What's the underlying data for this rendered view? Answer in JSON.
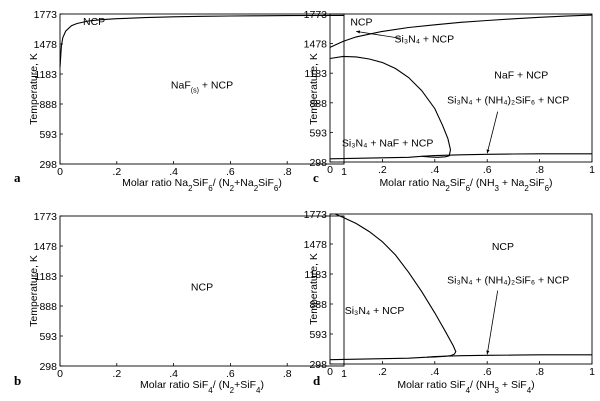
{
  "chart_data": [
    {
      "panel": "a",
      "type": "line",
      "ylabel": "Temperature, K",
      "xlabel": {
        "pre": "Molar ratio Na",
        "s1": "2",
        "mid1": "SiF",
        "s2": "6",
        "mid2": "/ (N",
        "s3": "2",
        "mid3": "+Na",
        "s4": "2",
        "mid4": "SiF",
        "s5": "6",
        "post": ")"
      },
      "xlim": [
        0,
        1
      ],
      "ylim": [
        298,
        1773
      ],
      "xticks": [
        0,
        0.2,
        0.4,
        0.6,
        0.8,
        1
      ],
      "xtick_labels": [
        "0",
        ".2",
        ".4",
        ".6",
        ".8",
        "1"
      ],
      "yticks": [
        298,
        593,
        888,
        1183,
        1478,
        1773
      ],
      "ytick_labels": [
        "298",
        "593",
        "888",
        "1183",
        "1478",
        "1773"
      ],
      "series": [
        {
          "x": [
            0,
            0.005,
            0.01,
            0.02,
            0.04,
            0.06,
            0.1,
            0.15,
            0.2,
            0.3,
            0.4,
            0.5,
            0.6,
            0.7,
            0.8,
            0.9,
            1.0
          ],
          "y": [
            1250,
            1460,
            1540,
            1605,
            1658,
            1680,
            1704,
            1718,
            1727,
            1738,
            1745,
            1750,
            1753,
            1755,
            1757,
            1758,
            1759
          ]
        }
      ],
      "annotations": [
        {
          "text": "NCP",
          "x": 0.12,
          "y": 1665
        },
        {
          "text": "NaF",
          "sub": "(s)",
          "tail": " + NCP",
          "x": 0.5,
          "y": 1040
        }
      ]
    },
    {
      "panel": "c",
      "type": "line",
      "ylabel": "Temperature, K",
      "xlabel": {
        "pre": "Molar ratio Na",
        "s1": "2",
        "mid1": "SiF",
        "s2": "6",
        "post": "/ (NH",
        "s3": "3",
        "post2": " + Na",
        "s4": "2",
        "post3": "SiF",
        "s5": "6",
        "post4": ")"
      },
      "xlim": [
        0,
        1
      ],
      "ylim": [
        298,
        1773
      ],
      "xticks": [
        0,
        0.2,
        0.4,
        0.6,
        0.8,
        1
      ],
      "xtick_labels": [
        "0",
        ".2",
        ".4",
        ".6",
        ".8",
        "1"
      ],
      "yticks": [
        298,
        593,
        888,
        1183,
        1478,
        1773
      ],
      "ytick_labels": [
        "298",
        "593",
        "888",
        "1183",
        "1478",
        "1773"
      ],
      "series": [
        {
          "x": [
            0,
            0.05,
            0.1,
            0.2,
            0.3,
            0.4,
            0.5,
            0.6,
            0.7,
            0.8,
            0.9,
            1.0
          ],
          "y": [
            1440,
            1500,
            1545,
            1600,
            1638,
            1665,
            1690,
            1708,
            1725,
            1740,
            1752,
            1762
          ]
        },
        {
          "x": [
            0,
            0.05,
            0.1,
            0.15,
            0.2,
            0.25,
            0.3,
            0.35,
            0.4,
            0.43,
            0.45,
            0.46,
            0.455,
            0.44,
            0.41,
            0.38,
            0.35
          ],
          "y": [
            1330,
            1350,
            1345,
            1325,
            1290,
            1230,
            1140,
            1010,
            830,
            660,
            530,
            420,
            360,
            350,
            345,
            348,
            355
          ]
        },
        {
          "x": [
            0.35,
            0.4,
            0.5,
            0.6,
            0.7,
            0.8,
            0.9,
            1.0
          ],
          "y": [
            355,
            362,
            370,
            375,
            378,
            380,
            380,
            380
          ]
        },
        {
          "x": [
            0,
            0.1,
            0.2,
            0.3,
            0.35
          ],
          "y": [
            330,
            335,
            340,
            345,
            355
          ]
        }
      ],
      "annotations": [
        {
          "text": "NCP",
          "x": 0.12,
          "y": 1660
        },
        {
          "text": "Si₃N₄ + NCP",
          "x": 0.36,
          "y": 1490
        },
        {
          "text": "NaF  +  NCP",
          "x": 0.73,
          "y": 1130
        },
        {
          "text": "Si₃N₄ + (NH₄)₂SiF₆ + NCP",
          "x": 0.68,
          "y": 880
        },
        {
          "text": "Si₃N₄ + NaF  +  NCP",
          "x": 0.22,
          "y": 450
        }
      ]
    },
    {
      "panel": "b",
      "type": "line",
      "ylabel": "Temperature, K",
      "xlabel": {
        "pre": "Molar ratio SiF",
        "s1": "4",
        "mid1": "/ (N",
        "s2": "2",
        "post": "+SiF",
        "s3": "4",
        "post2": ")"
      },
      "xlim": [
        0,
        1
      ],
      "ylim": [
        298,
        1773
      ],
      "xticks": [
        0,
        0.2,
        0.4,
        0.6,
        0.8,
        1
      ],
      "xtick_labels": [
        "0",
        ".2",
        ".4",
        ".6",
        ".8",
        "1"
      ],
      "yticks": [
        298,
        593,
        888,
        1183,
        1478,
        1773
      ],
      "ytick_labels": [
        "298",
        "593",
        "888",
        "1183",
        "1478",
        "1773"
      ],
      "series": [],
      "annotations": [
        {
          "text": "NCP",
          "x": 0.5,
          "y": 1040
        }
      ]
    },
    {
      "panel": "d",
      "type": "line",
      "ylabel": "Temperature, K",
      "xlabel": {
        "pre": "Molar ratio SiF",
        "s1": "4",
        "mid1": "/ (NH",
        "s2": "3",
        "post": " + SiF",
        "s3": "4",
        "post2": ")"
      },
      "xlim": [
        0,
        1
      ],
      "ylim": [
        298,
        1773
      ],
      "xticks": [
        0,
        0.2,
        0.4,
        0.6,
        0.8,
        1
      ],
      "xtick_labels": [
        "0",
        ".2",
        ".4",
        ".6",
        ".8",
        "1"
      ],
      "yticks": [
        298,
        593,
        888,
        1183,
        1478,
        1773
      ],
      "ytick_labels": [
        "298",
        "593",
        "888",
        "1183",
        "1478",
        "1773"
      ],
      "series": [
        {
          "x": [
            0.02,
            0.05,
            0.1,
            0.15,
            0.2,
            0.25,
            0.3,
            0.35,
            0.4,
            0.44,
            0.47,
            0.48,
            0.475,
            0.46,
            0.43,
            0.4,
            0.37
          ],
          "y": [
            1773,
            1740,
            1680,
            1600,
            1500,
            1370,
            1200,
            1010,
            800,
            620,
            480,
            420,
            395,
            380,
            372,
            368,
            365
          ]
        },
        {
          "x": [
            0,
            0.1,
            0.2,
            0.3,
            0.37,
            0.4,
            0.5,
            0.6,
            0.7,
            0.8,
            0.9,
            1.0
          ],
          "y": [
            340,
            345,
            350,
            355,
            365,
            372,
            380,
            384,
            386,
            388,
            388,
            388
          ]
        }
      ],
      "annotations": [
        {
          "text": "NCP",
          "x": 0.66,
          "y": 1420
        },
        {
          "text": "Si₃N₄ + (NH₄)₂SiF₆ + NCP",
          "x": 0.68,
          "y": 1090
        },
        {
          "text": "Si₃N₄   +  NCP",
          "x": 0.17,
          "y": 790
        }
      ]
    }
  ]
}
